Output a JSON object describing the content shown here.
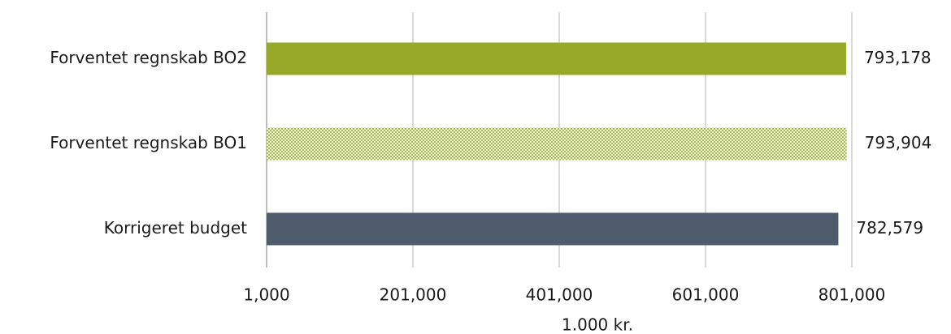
{
  "chart_data": {
    "type": "hbar",
    "categories": [
      "Forventet regnskab BO2",
      "Forventet regnskab BO1",
      "Korrigeret budget"
    ],
    "values": [
      793178,
      793904,
      782579
    ],
    "value_labels": [
      "793,178",
      "793,904",
      "782,579"
    ],
    "colors": [
      "#95a828",
      "#95a828",
      "#4d5b6a"
    ],
    "patterns": [
      null,
      "dots",
      null
    ],
    "xlim": [
      1000,
      801000
    ],
    "xticks": [
      {
        "value": 1000,
        "label": "1,000"
      },
      {
        "value": 201000,
        "label": "201,000"
      },
      {
        "value": 401000,
        "label": "401,000"
      },
      {
        "value": 601000,
        "label": "601,000"
      },
      {
        "value": 801000,
        "label": "801,000"
      }
    ],
    "xlabel": "1.000 kr.",
    "grid": true
  }
}
